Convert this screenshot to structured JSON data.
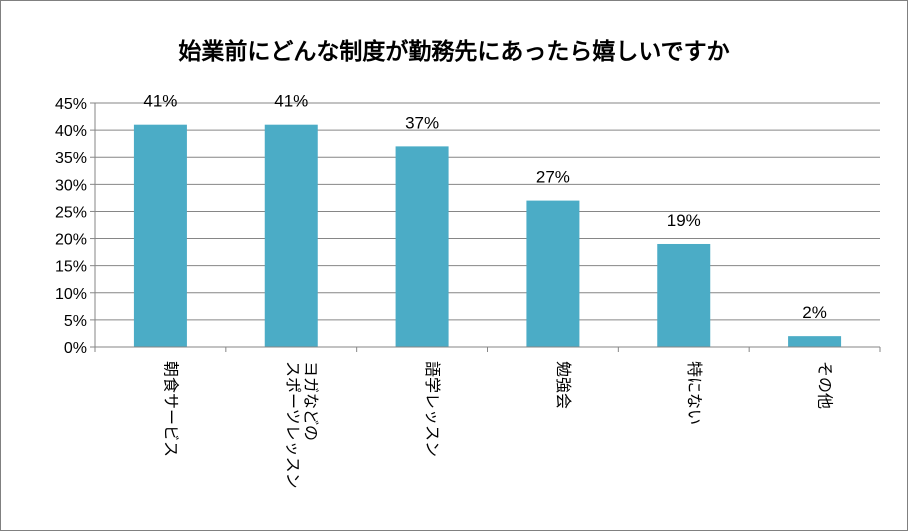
{
  "chart_data": {
    "type": "bar",
    "title": "始業前にどんな制度が勤務先にあったら嬉しいですか",
    "xlabel": "",
    "ylabel": "",
    "categories": [
      "朝食サービス",
      "ヨガなどのスポーツレッスン",
      "語学レッスン",
      "勉強会",
      "特にない",
      "その他"
    ],
    "category_lines": [
      [
        "朝食サービス"
      ],
      [
        "ヨガなどの",
        "スポーツレッスン"
      ],
      [
        "語学レッスン"
      ],
      [
        "勉強会"
      ],
      [
        "特にない"
      ],
      [
        "その他"
      ]
    ],
    "values": [
      41,
      41,
      37,
      27,
      19,
      2
    ],
    "data_labels": [
      "41%",
      "41%",
      "37%",
      "27%",
      "19%",
      "2%"
    ],
    "ylim": [
      0,
      45
    ],
    "y_ticks": [
      0,
      5,
      10,
      15,
      20,
      25,
      30,
      35,
      40,
      45
    ],
    "y_tick_labels": [
      "0%",
      "5%",
      "10%",
      "15%",
      "20%",
      "25%",
      "30%",
      "35%",
      "40%",
      "45%"
    ],
    "grid": true,
    "legend": "none",
    "bar_color": "#4BACC6",
    "grid_color": "#868686"
  }
}
